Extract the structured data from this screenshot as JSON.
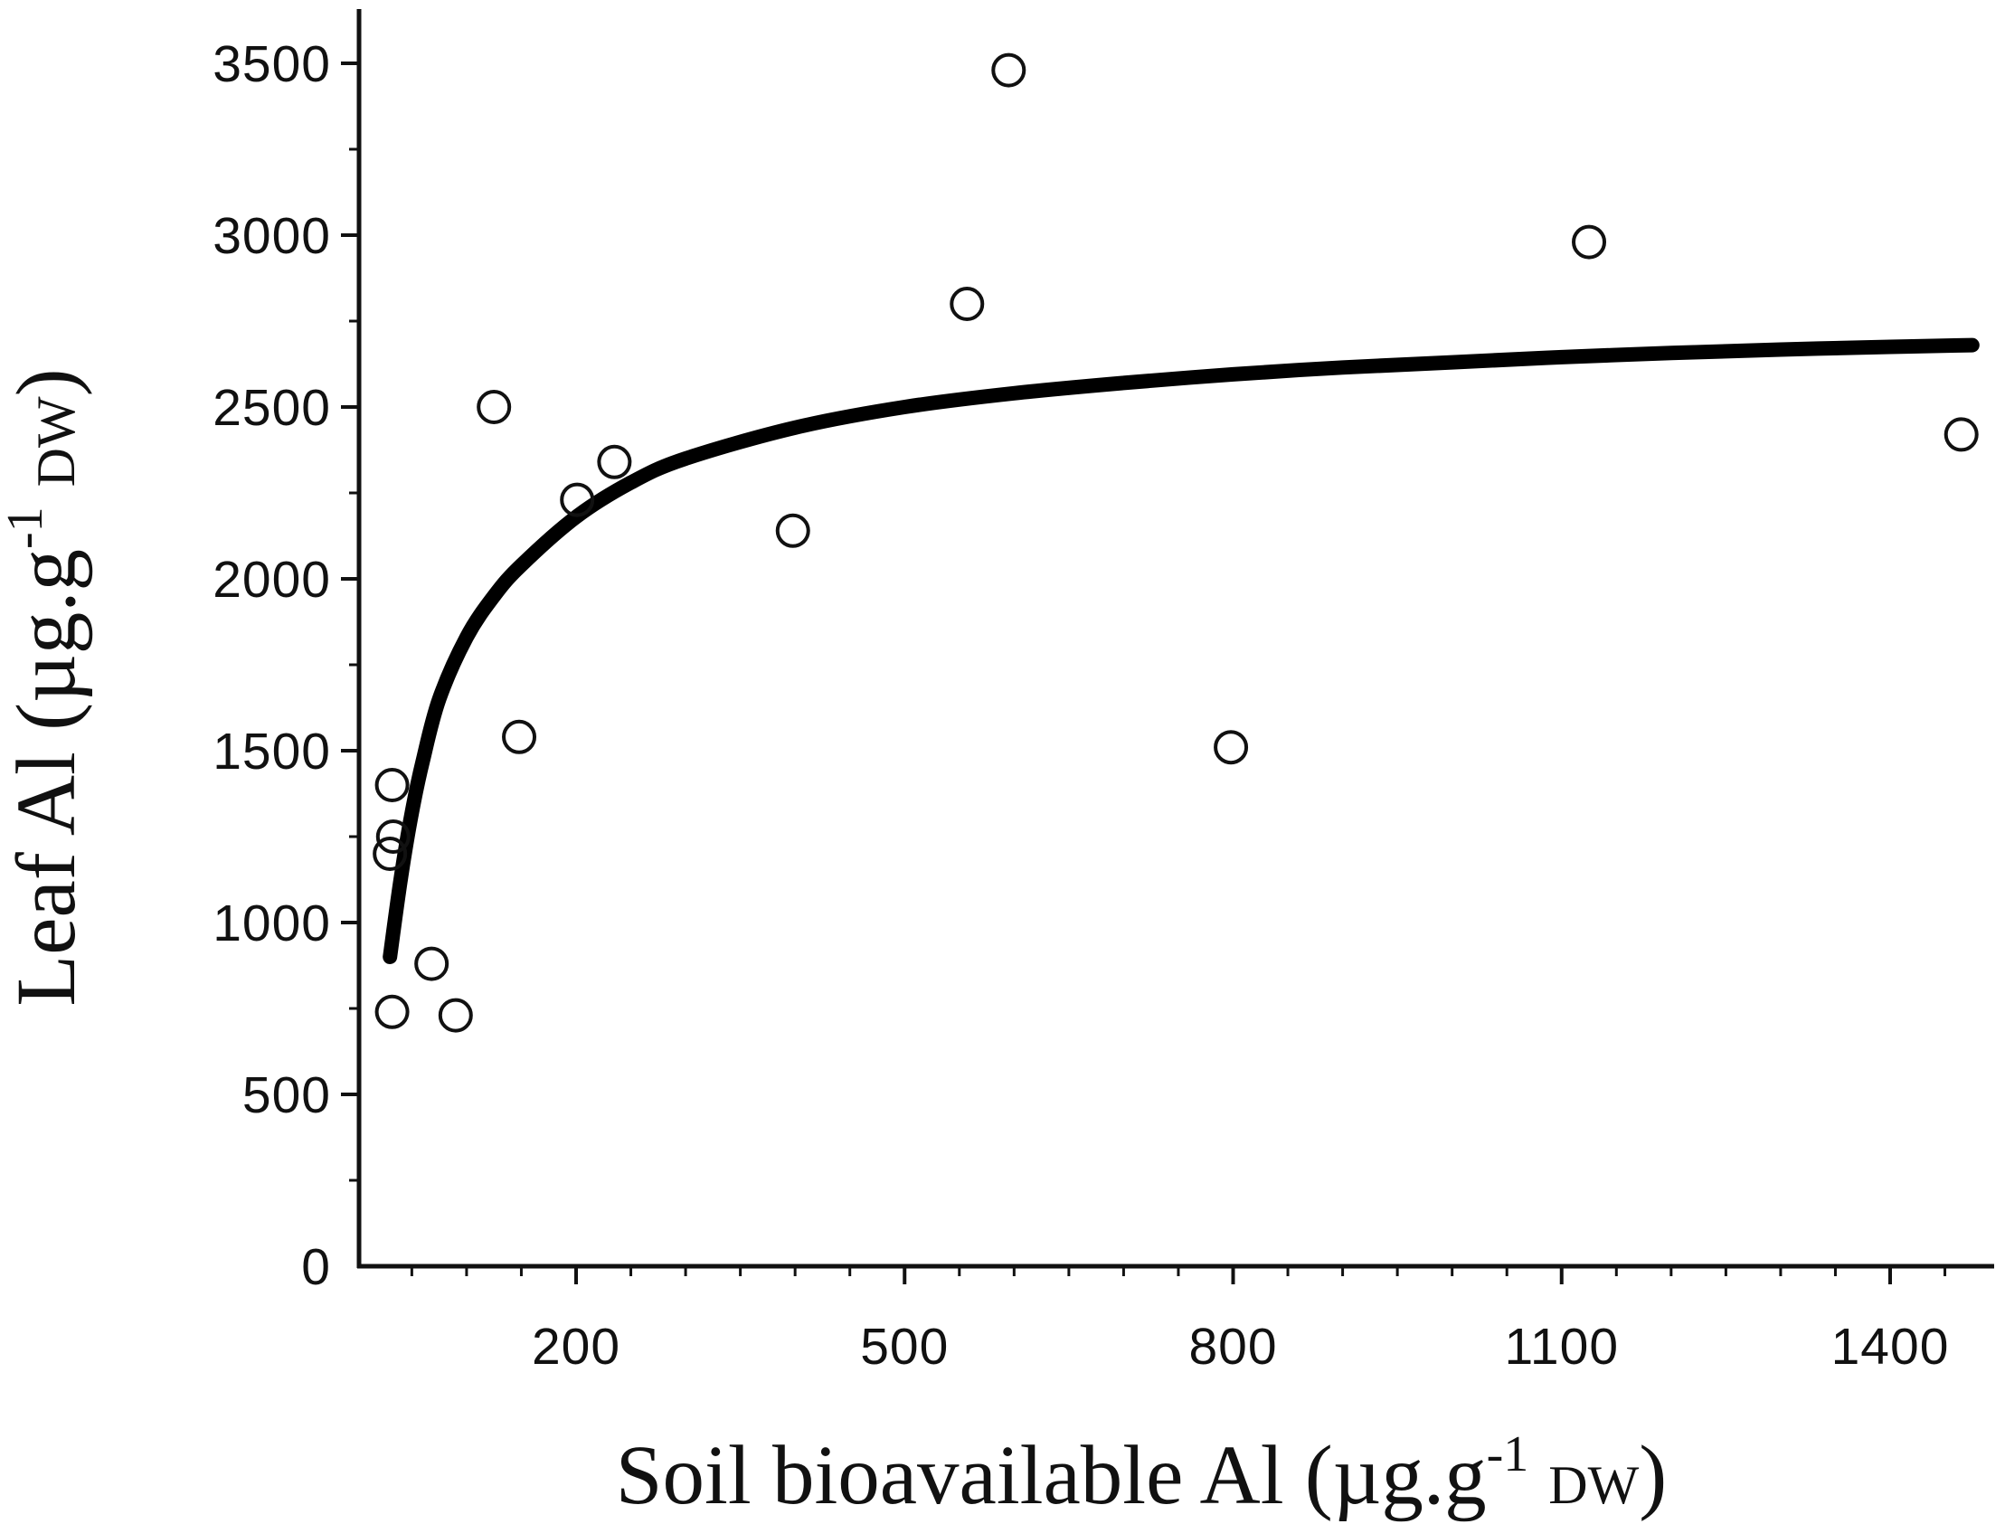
{
  "chart_data": {
    "type": "scatter",
    "xlabel": {
      "main": "Soil bioavailable Al (µg.g",
      "sup": "-1",
      "unit": "DW",
      "close": ")"
    },
    "ylabel": {
      "main": "Leaf Al (µg.g",
      "sup": "-1",
      "unit": "DW",
      "close": ")"
    },
    "x_ticks": [
      200,
      500,
      800,
      1100,
      1400
    ],
    "x_tick_labels": [
      "200",
      "500",
      "800",
      "1100",
      "1400"
    ],
    "y_ticks": [
      0,
      500,
      1000,
      1500,
      2000,
      2500,
      3000,
      3500
    ],
    "y_tick_labels": [
      "0",
      "500",
      "1000",
      "1500",
      "2000",
      "2500",
      "3000",
      "3500"
    ],
    "xlim": [
      5,
      1480
    ],
    "ylim": [
      0,
      3650
    ],
    "grid": false,
    "series": [
      {
        "type": "scatter",
        "marker": "open-circle",
        "points": [
          {
            "x": 32,
            "y": 1400
          },
          {
            "x": 33,
            "y": 1250
          },
          {
            "x": 30,
            "y": 1200
          },
          {
            "x": 32,
            "y": 740
          },
          {
            "x": 68,
            "y": 880
          },
          {
            "x": 90,
            "y": 730
          },
          {
            "x": 125,
            "y": 2500
          },
          {
            "x": 148,
            "y": 1540
          },
          {
            "x": 201,
            "y": 2230
          },
          {
            "x": 235,
            "y": 2340
          },
          {
            "x": 398,
            "y": 2140
          },
          {
            "x": 557,
            "y": 2800
          },
          {
            "x": 595,
            "y": 3480
          },
          {
            "x": 798,
            "y": 1510
          },
          {
            "x": 1125,
            "y": 2980
          },
          {
            "x": 1465,
            "y": 2420
          }
        ]
      },
      {
        "type": "line",
        "style": "fit-curve",
        "points": [
          {
            "x": 30,
            "y": 900
          },
          {
            "x": 40,
            "y": 1130
          },
          {
            "x": 50,
            "y": 1320
          },
          {
            "x": 60,
            "y": 1470
          },
          {
            "x": 75,
            "y": 1650
          },
          {
            "x": 100,
            "y": 1830
          },
          {
            "x": 125,
            "y": 1950
          },
          {
            "x": 150,
            "y": 2040
          },
          {
            "x": 200,
            "y": 2180
          },
          {
            "x": 250,
            "y": 2280
          },
          {
            "x": 300,
            "y": 2350
          },
          {
            "x": 400,
            "y": 2440
          },
          {
            "x": 500,
            "y": 2500
          },
          {
            "x": 600,
            "y": 2540
          },
          {
            "x": 700,
            "y": 2570
          },
          {
            "x": 800,
            "y": 2595
          },
          {
            "x": 900,
            "y": 2615
          },
          {
            "x": 1000,
            "y": 2630
          },
          {
            "x": 1100,
            "y": 2645
          },
          {
            "x": 1200,
            "y": 2657
          },
          {
            "x": 1300,
            "y": 2667
          },
          {
            "x": 1400,
            "y": 2675
          },
          {
            "x": 1475,
            "y": 2680
          }
        ]
      }
    ],
    "colors": {
      "axis": "#111111",
      "marker": "#111111",
      "curve": "#000000",
      "background": "#ffffff"
    }
  }
}
